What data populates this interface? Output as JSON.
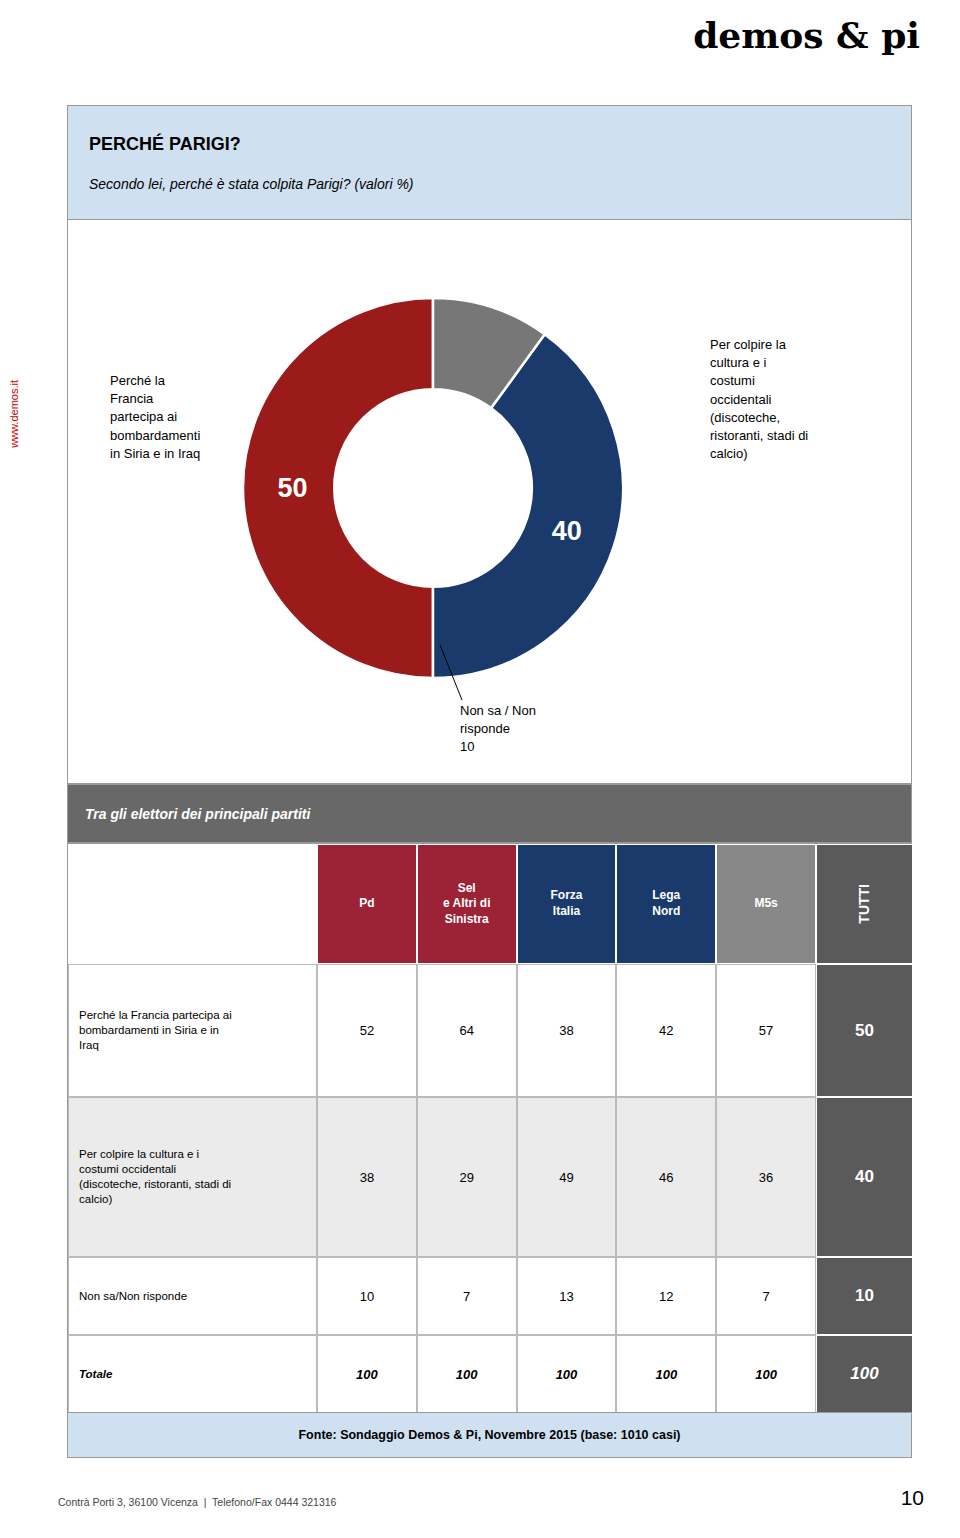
{
  "chart_data": [
    {
      "type": "pie",
      "title": "PERCHÉ PARIGI?",
      "subtitle": "Secondo lei, perché è stata colpita Parigi? (valori %)",
      "categories": [
        "Perché la\nFrancia\npartecipa ai\nbombardamenti\nin Siria e in Iraq",
        "Per colpire la\ncultura e i\ncostumi\noccidentali\n(discoteche,\nristoranti, stadi di\ncalcio)",
        "Non sa / Non\nrisponde"
      ],
      "values": [
        50,
        40,
        10
      ],
      "colors": [
        "#9b1b1b",
        "#1a3a6b",
        "#777777"
      ],
      "data_labels": true,
      "annotations": [
        "demos & pi",
        "www.demos.it",
        "Contrà Porti 3, 36100 Vicenza  |  Telefono/Fax 0444 321316",
        "10"
      ]
    },
    {
      "type": "table",
      "title": "Tra gli elettori dei principali partiti",
      "categories": [
        "Perché la Francia partecipa ai\nbombardamenti in Siria e in\nIraq",
        "Per colpire la cultura e i\ncostumi occidentali\n(discoteche, ristoranti, stadi di\ncalcio)",
        "Non sa/Non risponde",
        "Totale"
      ],
      "series": [
        {
          "name": "Pd",
          "color": "#9b2335",
          "values": [
            52,
            38,
            10,
            100
          ]
        },
        {
          "name": "Sel\ne Altri di\nSinistra",
          "color": "#9b2335",
          "values": [
            64,
            29,
            7,
            100
          ]
        },
        {
          "name": "Forza\nItalia",
          "color": "#1a3a6b",
          "values": [
            38,
            49,
            13,
            100
          ]
        },
        {
          "name": "Lega\nNord",
          "color": "#1a3a6b",
          "values": [
            42,
            46,
            12,
            100
          ]
        },
        {
          "name": "M5s",
          "color": "#888888",
          "values": [
            57,
            36,
            7,
            100
          ]
        },
        {
          "name": "TUTTI",
          "color": "#5a5a5a",
          "values": [
            50,
            40,
            10,
            100
          ]
        }
      ],
      "annotations": [
        "Fonte: Sondaggio Demos & Pi, Novembre 2015 (base: 1010 casi)"
      ]
    }
  ]
}
